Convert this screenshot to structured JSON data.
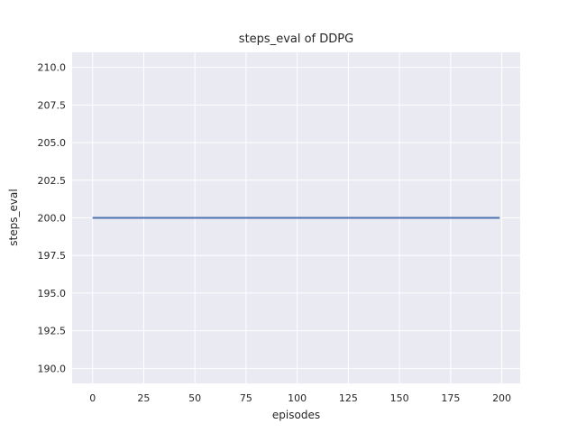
{
  "chart_data": {
    "type": "line",
    "title": "steps_eval of DDPG",
    "xlabel": "episodes",
    "ylabel": "steps_eval",
    "xlim": [
      -10.0,
      209.0
    ],
    "ylim": [
      189.0,
      211.0
    ],
    "xticks": [
      0,
      25,
      50,
      75,
      100,
      125,
      150,
      175,
      200
    ],
    "xtick_labels": [
      "0",
      "25",
      "50",
      "75",
      "100",
      "125",
      "150",
      "175",
      "200"
    ],
    "yticks": [
      190.0,
      192.5,
      195.0,
      197.5,
      200.0,
      202.5,
      205.0,
      207.5,
      210.0
    ],
    "ytick_labels": [
      "190.0",
      "192.5",
      "195.0",
      "197.5",
      "200.0",
      "202.5",
      "205.0",
      "207.5",
      "210.0"
    ],
    "grid": true,
    "legend": false,
    "series": [
      {
        "name": "steps_eval",
        "color": "#4C72B0",
        "x": [
          0,
          199
        ],
        "y": [
          200,
          200
        ],
        "note": "constant value 200 for all episodes from 0 to 199"
      }
    ],
    "style": {
      "figure_background": "#FFFFFF",
      "axes_background": "#EAEAF2",
      "grid_color": "#FFFFFF",
      "text_color": "#262626"
    }
  }
}
